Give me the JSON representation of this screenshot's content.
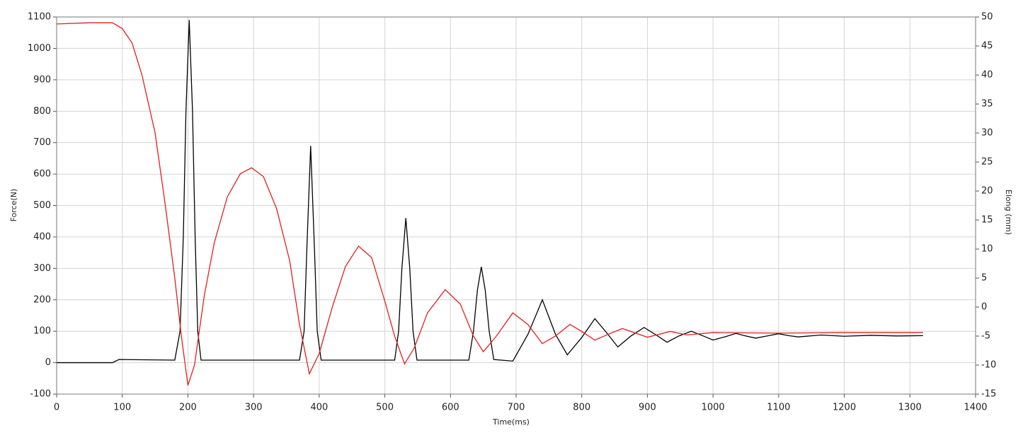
{
  "chart_data": {
    "type": "line",
    "x_label": "Time(ms)",
    "y_label": "Force(N)",
    "y2_label": "Elong (mm)",
    "xlim": [
      0,
      1400
    ],
    "xticks": [
      0,
      100,
      200,
      300,
      400,
      500,
      600,
      700,
      800,
      900,
      1000,
      1100,
      1200,
      1300,
      1400
    ],
    "ylim": [
      -100,
      1100
    ],
    "yticks": [
      -100,
      0,
      100,
      200,
      300,
      400,
      500,
      600,
      700,
      800,
      900,
      1000,
      1100
    ],
    "y2lim": [
      -15,
      50
    ],
    "y2ticks": [
      -15,
      -10,
      -5,
      0,
      5,
      10,
      15,
      20,
      25,
      30,
      35,
      40,
      45,
      50
    ],
    "grid": true,
    "series": [
      {
        "color": "#000000",
        "x": [
          0,
          85,
          95,
          180,
          188,
          193,
          197,
          202,
          207,
          211,
          215,
          220,
          370,
          377,
          381,
          387,
          393,
          397,
          403,
          515,
          521,
          526,
          532,
          538,
          543,
          549,
          628,
          635,
          641,
          647,
          653,
          659,
          666,
          695,
          718,
          740,
          760,
          778,
          800,
          820,
          838,
          855,
          875,
          895,
          912,
          930,
          948,
          967,
          985,
          1000,
          1018,
          1035,
          1050,
          1065,
          1085,
          1100,
          1115,
          1130,
          1165,
          1200,
          1240,
          1280,
          1320
        ],
        "values": [
          0,
          0,
          10,
          8,
          100,
          400,
          800,
          1090,
          800,
          400,
          100,
          8,
          8,
          100,
          350,
          690,
          350,
          100,
          8,
          8,
          100,
          300,
          460,
          300,
          100,
          8,
          8,
          100,
          230,
          305,
          230,
          100,
          10,
          5,
          90,
          200,
          90,
          25,
          80,
          140,
          95,
          50,
          85,
          112,
          90,
          65,
          85,
          100,
          85,
          72,
          82,
          93,
          85,
          78,
          86,
          92,
          86,
          82,
          88,
          84,
          87,
          85,
          86
        ]
      },
      {
        "color": "#e02020",
        "axis": "y2",
        "x": [
          0,
          50,
          85,
          100,
          115,
          130,
          150,
          165,
          180,
          190,
          200,
          210,
          225,
          240,
          260,
          280,
          297,
          315,
          335,
          355,
          370,
          385,
          400,
          420,
          440,
          460,
          480,
          500,
          515,
          530,
          545,
          565,
          592,
          615,
          635,
          650,
          670,
          695,
          718,
          740,
          760,
          782,
          800,
          820,
          840,
          862,
          880,
          900,
          935,
          960,
          1000,
          1100,
          1200,
          1320
        ],
        "values": [
          48.8,
          49,
          49,
          48,
          45.5,
          40,
          30,
          18,
          5,
          -5,
          -13.5,
          -10,
          2,
          11,
          19,
          23,
          24,
          22.5,
          17,
          8,
          -3,
          -11.5,
          -8,
          0,
          7,
          10.5,
          8.5,
          1,
          -5,
          -9.8,
          -7,
          -1,
          3,
          0.5,
          -5,
          -7.7,
          -5,
          -1,
          -3,
          -6.3,
          -5,
          -3,
          -4.2,
          -5.7,
          -4.7,
          -3.7,
          -4.4,
          -5.2,
          -4.2,
          -4.8,
          -4.4,
          -4.5,
          -4.4,
          -4.4
        ]
      }
    ]
  }
}
